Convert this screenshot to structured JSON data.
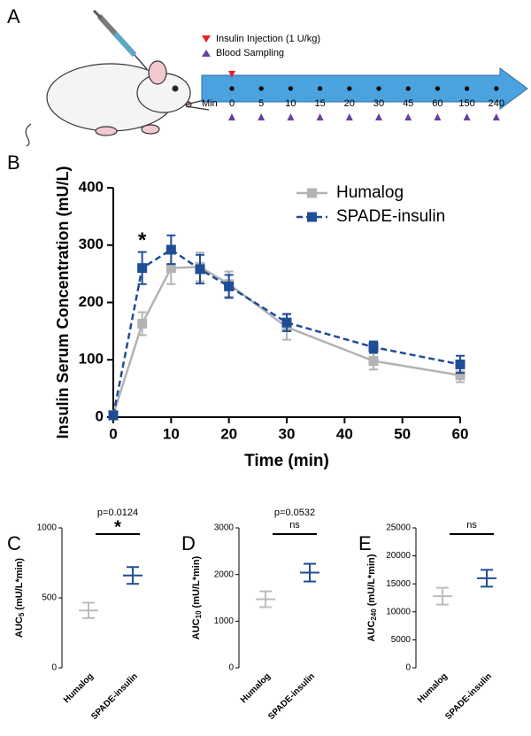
{
  "panel_labels": [
    "A",
    "B",
    "C",
    "D",
    "E"
  ],
  "schematic": {
    "legend": [
      {
        "label": "Insulin Injection (1 U/kg)",
        "color": "#e8202a"
      },
      {
        "label": "Blood Sampling",
        "color": "#6b3fa0"
      }
    ],
    "time_label": "Min",
    "times": [
      "0",
      "5",
      "10",
      "15",
      "20",
      "30",
      "45",
      "60",
      "150",
      "240"
    ]
  },
  "chart_data": [
    {
      "type": "line",
      "x_label": "Time (min)",
      "y_label": "Insulin Serum Concentration (mU/L)",
      "x": [
        0,
        5,
        10,
        15,
        20,
        30,
        45,
        60
      ],
      "series": [
        {
          "name": "Humalog",
          "color": "#b3b3b3",
          "dashed": false,
          "values": [
            4,
            163,
            260,
            262,
            232,
            157,
            98,
            73
          ],
          "errors": [
            3,
            20,
            28,
            25,
            22,
            22,
            15,
            12
          ]
        },
        {
          "name": "SPADE-insulin",
          "color": "#1f4e96",
          "dashed": true,
          "values": [
            3,
            260,
            292,
            258,
            228,
            165,
            122,
            92
          ],
          "errors": [
            3,
            28,
            25,
            25,
            20,
            15,
            10,
            15
          ]
        }
      ],
      "xlim": [
        0,
        60
      ],
      "xticks": [
        0,
        10,
        20,
        30,
        40,
        50,
        60
      ],
      "ylim": [
        0,
        400
      ],
      "yticks": [
        0,
        100,
        200,
        300,
        400
      ],
      "annotations": [
        {
          "text": "*",
          "x": 5
        }
      ]
    },
    {
      "type": "errorbar",
      "y_label": {
        "main": "AUC",
        "sub": "5",
        "unit": "(mU/L*min)"
      },
      "categories": [
        "Humalog",
        "SPADE-insulin"
      ],
      "values": [
        410,
        660
      ],
      "errors": [
        55,
        60
      ],
      "colors": [
        "#bdbdbd",
        "#1f4e96"
      ],
      "ylim": [
        0,
        1000
      ],
      "yticks": [
        0,
        500,
        1000
      ],
      "p_value": "p=0.0124",
      "significance": "*"
    },
    {
      "type": "errorbar",
      "y_label": {
        "main": "AUC",
        "sub": "10",
        "unit": "(mU/L*min)"
      },
      "categories": [
        "Humalog",
        "SPADE-insulin"
      ],
      "values": [
        1470,
        2040
      ],
      "errors": [
        170,
        190
      ],
      "colors": [
        "#bdbdbd",
        "#1f4e96"
      ],
      "ylim": [
        0,
        3000
      ],
      "yticks": [
        0,
        1000,
        2000,
        3000
      ],
      "p_value": "p=0.0532",
      "significance": "ns"
    },
    {
      "type": "errorbar",
      "y_label": {
        "main": "AUC",
        "sub": "240",
        "unit": "(mU/L*min)"
      },
      "categories": [
        "Humalog",
        "SPADE-insulin"
      ],
      "values": [
        12800,
        16000
      ],
      "errors": [
        1500,
        1500
      ],
      "colors": [
        "#bdbdbd",
        "#1f4e96"
      ],
      "ylim": [
        0,
        25000
      ],
      "yticks": [
        0,
        5000,
        10000,
        15000,
        20000,
        25000
      ],
      "significance": "ns"
    }
  ]
}
